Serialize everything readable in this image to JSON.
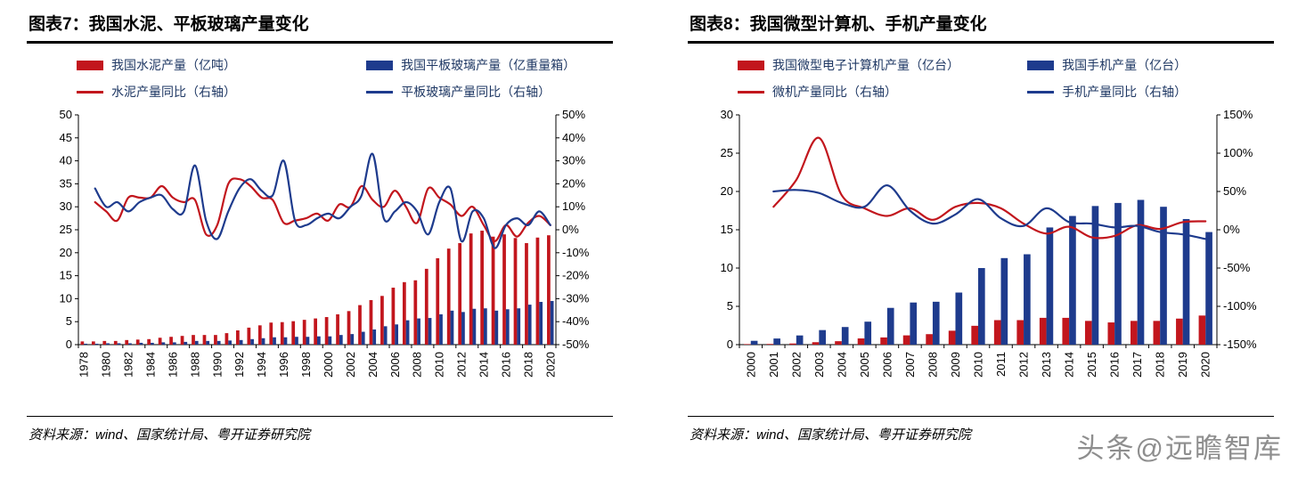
{
  "colors": {
    "red": "#C2161D",
    "blue": "#1E3B8D",
    "axis": "#000000",
    "legend_text": "#1F3864",
    "watermark": "#8E8E8E"
  },
  "sources": {
    "left": "资料来源：wind、国家统计局、粤开证券研究院",
    "right": "资料来源：wind、国家统计局、粤开证券研究院"
  },
  "watermark": {
    "text": "头条@远瞻智库"
  },
  "chart_data": [
    {
      "title": "图表7：我国水泥、平板玻璃产量变化",
      "type": "bar+line",
      "legend_position": "top",
      "grid": false,
      "x_label_every": 2,
      "categories": [
        "1978",
        "1979",
        "1980",
        "1981",
        "1982",
        "1983",
        "1984",
        "1985",
        "1986",
        "1987",
        "1988",
        "1989",
        "1990",
        "1991",
        "1992",
        "1993",
        "1994",
        "1995",
        "1996",
        "1997",
        "1998",
        "1999",
        "2000",
        "2001",
        "2002",
        "2003",
        "2004",
        "2005",
        "2006",
        "2007",
        "2008",
        "2009",
        "2010",
        "2011",
        "2012",
        "2013",
        "2014",
        "2015",
        "2016",
        "2017",
        "2018",
        "2019",
        "2020"
      ],
      "left_axis": {
        "min": 0,
        "max": 50,
        "step": 5
      },
      "right_axis": {
        "min": -50,
        "max": 50,
        "step": 10,
        "suffix": "%"
      },
      "series": [
        {
          "name": "我国水泥产量（亿吨）",
          "kind": "bar",
          "axis": "left",
          "color": "red",
          "values": [
            0.7,
            0.7,
            0.8,
            0.8,
            1.0,
            1.1,
            1.2,
            1.5,
            1.7,
            1.9,
            2.1,
            2.1,
            2.1,
            2.5,
            3.1,
            3.7,
            4.2,
            4.8,
            4.9,
            5.1,
            5.4,
            5.7,
            6.0,
            6.6,
            7.3,
            8.6,
            9.7,
            10.6,
            12.4,
            13.6,
            14.0,
            16.5,
            18.8,
            20.9,
            22.1,
            24.2,
            24.8,
            23.5,
            24.0,
            23.2,
            22.1,
            23.3,
            23.8
          ]
        },
        {
          "name": "我国平板玻璃产量（亿重量箱）",
          "kind": "bar",
          "axis": "left",
          "color": "blue",
          "values": [
            0.2,
            0.2,
            0.3,
            0.3,
            0.3,
            0.4,
            0.4,
            0.5,
            0.5,
            0.6,
            0.8,
            0.8,
            0.8,
            0.9,
            1.0,
            1.2,
            1.4,
            1.6,
            1.6,
            1.7,
            1.7,
            1.8,
            1.8,
            2.1,
            2.3,
            2.8,
            3.3,
            4.0,
            4.4,
            5.3,
            5.7,
            5.8,
            6.6,
            7.4,
            7.1,
            7.8,
            7.9,
            7.4,
            7.7,
            7.9,
            8.7,
            9.3,
            9.5
          ]
        },
        {
          "name": "水泥产量同比（右轴）",
          "kind": "line",
          "axis": "right",
          "unit": "%",
          "color": "red",
          "values": [
            null,
            12,
            8,
            4,
            14,
            14,
            14,
            19,
            14,
            12,
            13,
            -2,
            2,
            20,
            22,
            19,
            14,
            13,
            3,
            4,
            5,
            7,
            4,
            11,
            10,
            19,
            13,
            10,
            17,
            10,
            3,
            18,
            14,
            11,
            6,
            10,
            2,
            -5,
            2,
            -3,
            3,
            6,
            2
          ]
        },
        {
          "name": "平板玻璃产量同比（右轴）",
          "kind": "line",
          "axis": "right",
          "unit": "%",
          "color": "blue",
          "values": [
            null,
            18,
            10,
            12,
            8,
            12,
            14,
            15,
            9,
            8,
            28,
            4,
            -4,
            8,
            18,
            22,
            17,
            15,
            30,
            4,
            2,
            5,
            7,
            5,
            10,
            15,
            33,
            5,
            8,
            12,
            8,
            -2,
            12,
            18,
            -5,
            8,
            5,
            -8,
            2,
            5,
            2,
            8,
            2
          ]
        }
      ]
    },
    {
      "title": "图表8：我国微型计算机、手机产量变化",
      "type": "bar+line",
      "legend_position": "top",
      "grid": false,
      "x_label_every": 1,
      "categories": [
        "2000",
        "2001",
        "2002",
        "2003",
        "2004",
        "2005",
        "2006",
        "2007",
        "2008",
        "2009",
        "2010",
        "2011",
        "2012",
        "2013",
        "2014",
        "2015",
        "2016",
        "2017",
        "2018",
        "2019",
        "2020"
      ],
      "left_axis": {
        "min": 0,
        "max": 30,
        "step": 5
      },
      "right_axis": {
        "min": -150,
        "max": 150,
        "step": 50,
        "suffix": "%"
      },
      "series": [
        {
          "name": "我国微型电子计算机产量（亿台）",
          "kind": "bar",
          "axis": "left",
          "color": "red",
          "values": [
            0.07,
            0.09,
            0.15,
            0.32,
            0.45,
            0.81,
            0.94,
            1.21,
            1.37,
            1.82,
            2.46,
            3.2,
            3.2,
            3.5,
            3.5,
            3.1,
            2.9,
            3.1,
            3.1,
            3.4,
            3.8
          ]
        },
        {
          "name": "我国手机产量（亿台）",
          "kind": "bar",
          "axis": "left",
          "color": "blue",
          "values": [
            0.5,
            0.8,
            1.2,
            1.9,
            2.3,
            3.0,
            4.8,
            5.5,
            5.6,
            6.8,
            10.0,
            11.3,
            11.8,
            15.3,
            16.8,
            18.1,
            18.5,
            18.9,
            18.0,
            16.4,
            14.7
          ]
        },
        {
          "name": "微机产量同比（右轴）",
          "kind": "line",
          "axis": "right",
          "unit": "%",
          "color": "red",
          "values": [
            null,
            30,
            65,
            120,
            45,
            28,
            18,
            28,
            13,
            30,
            35,
            28,
            8,
            -5,
            4,
            -10,
            -8,
            6,
            1,
            10,
            11
          ]
        },
        {
          "name": "手机产量同比（右轴）",
          "kind": "line",
          "axis": "right",
          "unit": "%",
          "color": "blue",
          "values": [
            null,
            50,
            52,
            48,
            35,
            30,
            58,
            25,
            8,
            20,
            40,
            15,
            5,
            28,
            10,
            8,
            3,
            5,
            -3,
            -6,
            -12
          ]
        }
      ]
    }
  ]
}
